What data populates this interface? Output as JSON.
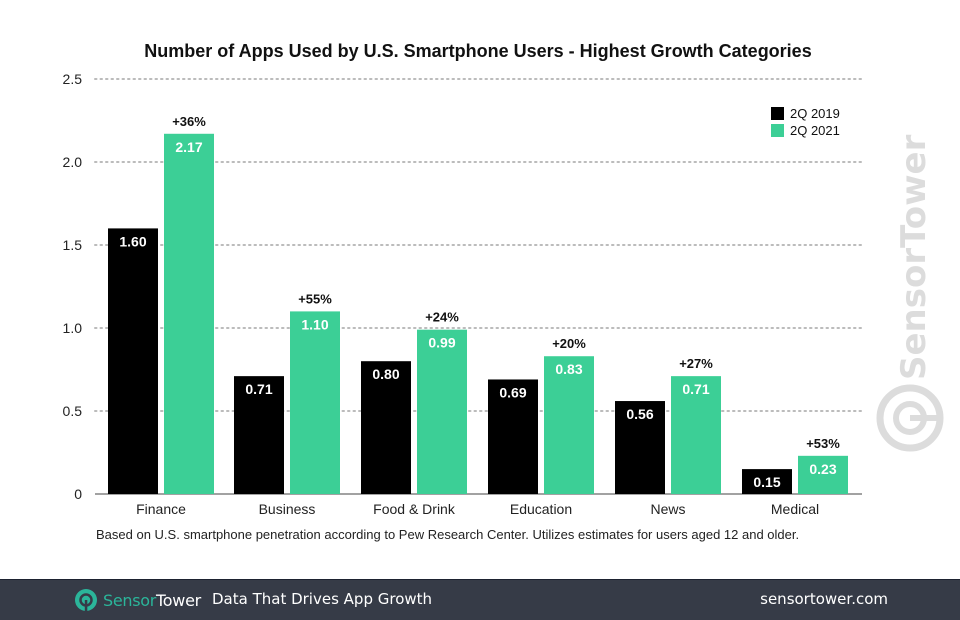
{
  "chart_data": {
    "type": "bar",
    "title": "Number of Apps Used by U.S. Smartphone Users - Highest Growth Categories",
    "categories": [
      "Finance",
      "Business",
      "Food & Drink",
      "Education",
      "News",
      "Medical"
    ],
    "series": [
      {
        "name": "2Q 2019",
        "color": "#000000",
        "values": [
          1.6,
          0.71,
          0.8,
          0.69,
          0.56,
          0.15
        ],
        "labels": [
          "1.60",
          "0.71",
          "0.80",
          "0.69",
          "0.56",
          "0.15"
        ]
      },
      {
        "name": "2Q 2021",
        "color": "#3ccf96",
        "values": [
          2.17,
          1.1,
          0.99,
          0.83,
          0.71,
          0.23
        ],
        "labels": [
          "2.17",
          "1.10",
          "0.99",
          "0.83",
          "0.71",
          "0.23"
        ]
      }
    ],
    "growth_labels": [
      "+36%",
      "+55%",
      "+24%",
      "+20%",
      "+27%",
      "+53%"
    ],
    "yticks": [
      "0",
      "0.5",
      "1.0",
      "1.5",
      "2.0",
      "2.5"
    ],
    "ylim": [
      0,
      2.5
    ],
    "grid": true,
    "legend": "top-right",
    "footnote": "Based on U.S. smartphone penetration according to Pew Research Center. Utilizes estimates for users aged 12 and older."
  },
  "watermark": "SensorTower",
  "footer": {
    "brand_sensor": "Sensor",
    "brand_tower": "Tower",
    "tagline": "Data That Drives App Growth",
    "url": "sensortower.com"
  }
}
